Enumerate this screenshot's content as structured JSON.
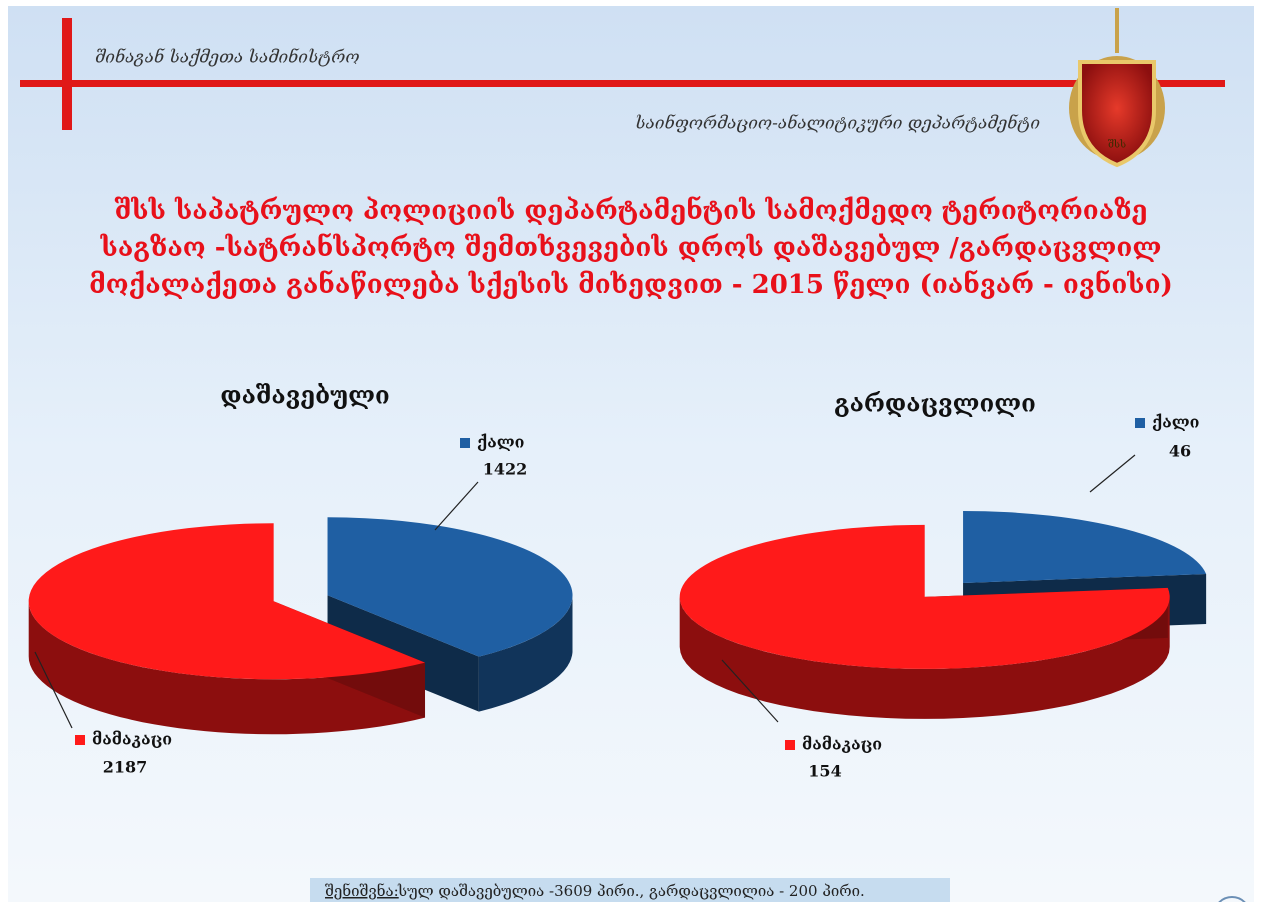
{
  "header": {
    "ministry": "შინაგან საქმეთა სამინისტრო",
    "department": "საინფორმაციო-ანალიტიკური დეპარტამენტი",
    "logo_text": "შსს"
  },
  "title": [
    "შსს საპატრულო პოლიციის დეპარტამენტის სამოქმედო ტერიტორიაზე",
    "საგზაო -სატრანსპორტო  შემთხვევების  დროს  დაშავებულ /გარდაცვლილ",
    "მოქალაქეთა  განაწილება  სქესის  მიხედვით - 2015 წელი  (იანვარ - ივნისი)"
  ],
  "chart_data": [
    {
      "type": "pie",
      "title": "დაშავებული",
      "categories": [
        "ქალი",
        "მამაკაცი"
      ],
      "values": [
        1422,
        2187
      ],
      "colors": [
        "#1f5fa3",
        "#ff1a1a"
      ]
    },
    {
      "type": "pie",
      "title": "გარდაცვლილი",
      "categories": [
        "ქალი",
        "მამაკაცი"
      ],
      "values": [
        46,
        154
      ],
      "colors": [
        "#1f5fa3",
        "#ff1a1a"
      ]
    }
  ],
  "note": {
    "label": "შენიშვნა:",
    "text": "სულ დაშავებულია -3609 პირი., გარდაცვლილია - 200 პირი."
  }
}
